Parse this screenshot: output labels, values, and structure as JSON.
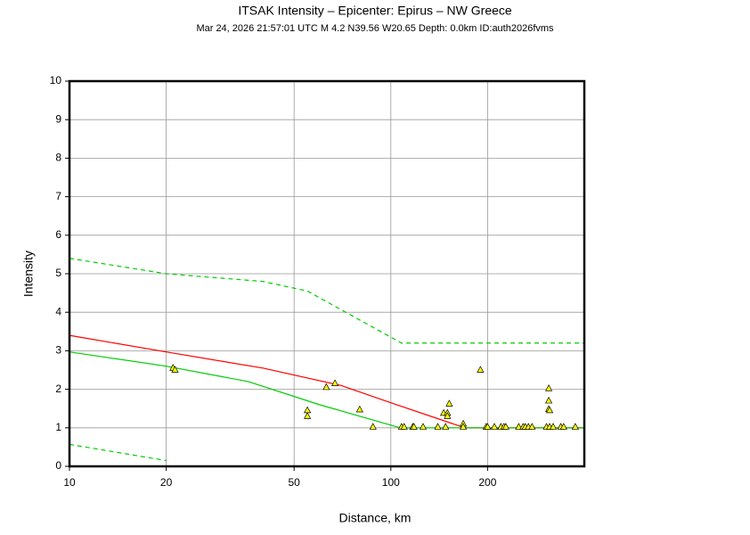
{
  "chart_data": {
    "type": "scatter",
    "title": "ITSAK Intensity –  Epicenter: Epirus – NW Greece",
    "subtitle": "Mar 24, 2026 21:57:01 UTC   M 4.2   N39.56 W20.65   Depth: 0.0km   ID:auth2026fvms",
    "x_label": "Distance, km",
    "y_label": "Intensity",
    "log_x": true,
    "grid": true,
    "xlim": [
      10,
      400
    ],
    "ylim": [
      0,
      10
    ],
    "xticks": [
      10,
      20,
      50,
      100,
      200
    ],
    "yticks": [
      0,
      1,
      2,
      3,
      4,
      5,
      6,
      7,
      8,
      9,
      10
    ],
    "points": {
      "color": "#ffff00",
      "x": [
        21,
        21.3,
        55,
        55,
        63,
        67,
        80,
        88,
        108,
        110,
        117,
        118,
        126,
        140,
        146,
        148,
        150,
        150,
        152,
        168,
        168,
        190,
        198,
        200,
        210,
        220,
        225,
        228,
        250,
        258,
        262,
        268,
        275,
        305,
        310,
        310,
        310,
        312,
        312,
        320,
        338,
        345,
        375
      ],
      "values": [
        2.55,
        2.5,
        1.45,
        1.3,
        2.05,
        2.15,
        1.47,
        1.02,
        1.02,
        1.02,
        1.02,
        1.02,
        1.02,
        1.02,
        1.38,
        1.02,
        1.38,
        1.3,
        1.62,
        1.1,
        1.02,
        2.5,
        1.02,
        1.02,
        1.02,
        1.02,
        1.02,
        1.02,
        1.02,
        1.02,
        1.02,
        1.02,
        1.02,
        1.02,
        2.02,
        1.7,
        1.48,
        1.45,
        1.02,
        1.02,
        1.02,
        1.02,
        1.02
      ]
    },
    "lines": [
      {
        "color": "#ff0000",
        "style": "solid",
        "x": [
          10,
          20,
          40,
          70,
          100,
          170,
          400
        ],
        "values": [
          3.4,
          2.97,
          2.55,
          2.1,
          1.65,
          1.0,
          1.0
        ]
      },
      {
        "color": "#00cc00",
        "style": "solid",
        "x": [
          10,
          20,
          36,
          60,
          107,
          400
        ],
        "values": [
          2.97,
          2.6,
          2.2,
          1.6,
          1.0,
          1.0
        ]
      },
      {
        "color": "#00cc00",
        "style": "dashed",
        "x": [
          10,
          20,
          40,
          55,
          108,
          400
        ],
        "values": [
          5.4,
          5.0,
          4.8,
          4.55,
          3.2,
          3.2
        ]
      },
      {
        "color": "#00cc00",
        "style": "dashed",
        "x": [
          10,
          20
        ],
        "values": [
          0.57,
          0.15
        ]
      }
    ]
  }
}
